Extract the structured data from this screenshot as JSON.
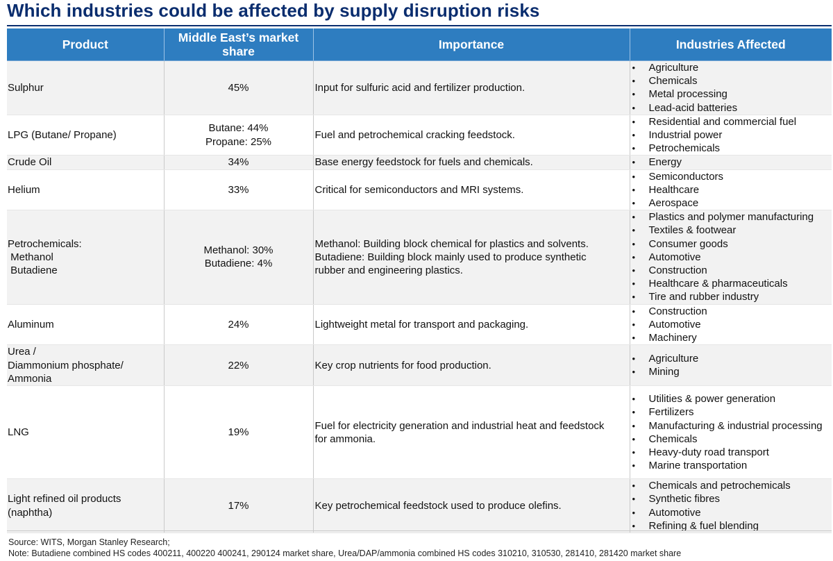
{
  "title": "Which industries could be affected by supply disruption risks",
  "headers": {
    "product": "Product",
    "share": "Middle East’s market share",
    "importance": "Importance",
    "industries": "Industries Affected"
  },
  "rows": [
    {
      "product": [
        "Sulphur"
      ],
      "share": [
        "45%"
      ],
      "importance": [
        "Input for sulfuric acid and fertilizer production."
      ],
      "industries": [
        "Agriculture",
        "Chemicals",
        "Metal processing",
        "Lead-acid batteries"
      ]
    },
    {
      "product": [
        "LPG (Butane/ Propane)"
      ],
      "share": [
        "Butane: 44%",
        "Propane: 25%"
      ],
      "importance": [
        "Fuel and petrochemical cracking feedstock."
      ],
      "industries": [
        "Residential and commercial fuel",
        "Industrial power",
        "Petrochemicals"
      ]
    },
    {
      "product": [
        "Crude Oil"
      ],
      "share": [
        "34%"
      ],
      "importance": [
        "Base energy feedstock for fuels and chemicals."
      ],
      "industries": [
        "Energy"
      ]
    },
    {
      "product": [
        "Helium"
      ],
      "share": [
        "33%"
      ],
      "importance": [
        "Critical for semiconductors and MRI systems."
      ],
      "industries": [
        "Semiconductors",
        "Healthcare",
        "Aerospace"
      ]
    },
    {
      "product": [
        "Petrochemicals:",
        " Methanol",
        " Butadiene"
      ],
      "share": [
        "Methanol: 30%",
        "Butadiene: 4%"
      ],
      "importance": [
        "Methanol: Building block chemical for plastics and solvents.",
        "Butadiene: Building block mainly used to produce synthetic",
        "rubber and engineering plastics."
      ],
      "industries": [
        "Plastics and polymer manufacturing",
        "Textiles & footwear",
        "Consumer goods",
        "Automotive",
        "Construction",
        "Healthcare & pharmaceuticals",
        "Tire and rubber industry"
      ]
    },
    {
      "product": [
        "Aluminum"
      ],
      "share": [
        "24%"
      ],
      "importance": [
        "Lightweight metal for transport and packaging."
      ],
      "industries": [
        "Construction",
        "Automotive",
        "Machinery"
      ]
    },
    {
      "product": [
        "Urea /",
        "Diammonium phosphate/",
        "Ammonia"
      ],
      "share": [
        "22%"
      ],
      "importance": [
        "Key crop nutrients for food production."
      ],
      "industries": [
        "Agriculture",
        "Mining"
      ]
    },
    {
      "product": [
        "LNG"
      ],
      "share": [
        "19%"
      ],
      "importance": [
        "Fuel for electricity generation and industrial heat and feedstock",
        "for ammonia."
      ],
      "industries": [
        "Utilities & power generation",
        "Fertilizers",
        "Manufacturing & industrial processing",
        "Chemicals",
        "Heavy-duty road transport",
        "Marine transportation"
      ]
    },
    {
      "product": [
        "Light refined oil products",
        "(naphtha)"
      ],
      "share": [
        "17%"
      ],
      "importance": [
        "Key petrochemical feedstock used to produce olefins."
      ],
      "industries": [
        "Chemicals and petrochemicals",
        "Synthetic fibres",
        "Automotive",
        "Refining & fuel blending"
      ]
    }
  ],
  "footer": {
    "source": "Source: WITS, Morgan Stanley Research;",
    "note": "Note: Butadiene combined HS codes 400211, 400220 400241, 290124 market share, Urea/DAP/ammonia combined HS codes 310210, 310530, 281410, 281420 market share"
  }
}
